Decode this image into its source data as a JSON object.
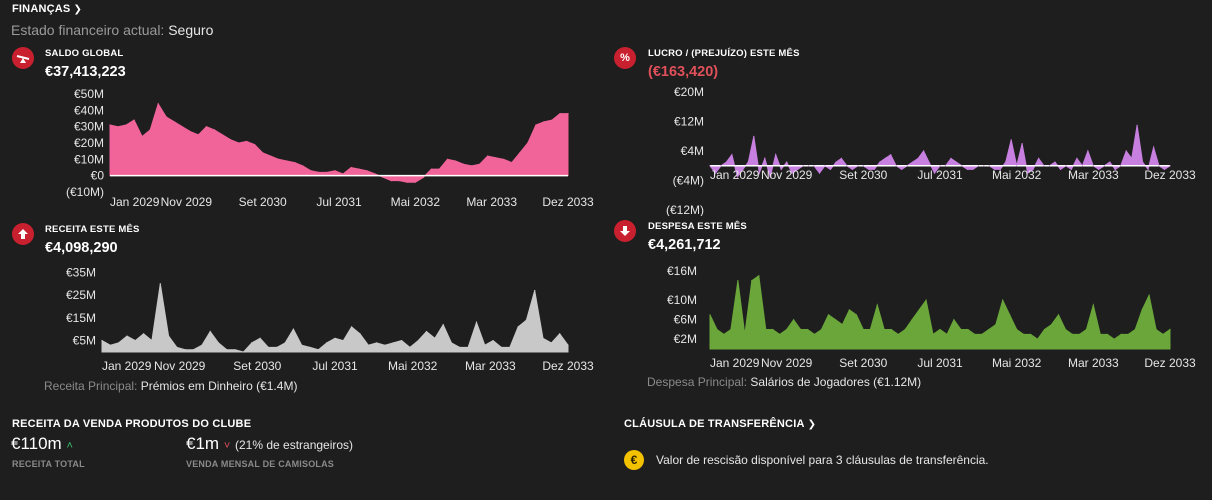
{
  "header": {
    "title": "FINANÇAS",
    "status_label": "Estado financeiro actual:",
    "status_value": "Seguro"
  },
  "colors": {
    "balance": "#f0649a",
    "profit": "#c77fe0",
    "income": "#c8c8c8",
    "expense": "#6aa63a",
    "accent": "#c8202f",
    "negative": "#e0505a",
    "up": "#33c26a",
    "down": "#e0505a",
    "coin": "#f2c200"
  },
  "panels": {
    "balance": {
      "label": "SALDO GLOBAL",
      "value": "€37,413,223",
      "icon": "seesaw-icon"
    },
    "profit": {
      "label": "LUCRO / (PREJUÍZO) ESTE MÊS",
      "value": "(€163,420)",
      "icon": "percent-icon"
    },
    "income": {
      "label": "RECEITA ESTE MÊS",
      "value": "€4,098,290",
      "icon": "arrow-up-icon",
      "footer_label": "Receita Principal:",
      "footer_value": "Prémios em Dinheiro (€1.4M)"
    },
    "expense": {
      "label": "DESPESA ESTE MÊS",
      "value": "€4,261,712",
      "icon": "arrow-down-icon",
      "footer_label": "Despesa Principal:",
      "footer_value": "Salários de Jogadores (€1.12M)"
    }
  },
  "merch": {
    "title": "RECEITA DA VENDA PRODUTOS DO CLUBE",
    "total_value": "€110m",
    "total_label": "RECEITA TOTAL",
    "monthly_value": "€1m",
    "monthly_note": "(21% de estrangeiros)",
    "monthly_label": "VENDA MENSAL DE CAMISOLAS"
  },
  "transfer": {
    "title": "CLÁUSULA DE TRANSFERÊNCIA",
    "coin_symbol": "€",
    "text": "Valor de rescisão disponível para 3 cláusulas de transferência."
  },
  "chart_data": [
    {
      "id": "balance",
      "type": "area",
      "x_ticks": [
        "Jan 2029",
        "Nov 2029",
        "Set 2030",
        "Jul 2031",
        "Mai 2032",
        "Mar 2033",
        "Dez 2033"
      ],
      "y_ticks": [
        "€50M",
        "€40M",
        "€30M",
        "€20M",
        "€10M",
        "€0",
        "(€10M)"
      ],
      "y_tick_values": [
        50,
        40,
        30,
        20,
        10,
        0,
        -10
      ],
      "ylim": [
        -10,
        50
      ],
      "values": [
        31,
        30,
        31,
        34,
        24,
        28,
        44,
        36,
        33,
        30,
        27,
        25,
        30,
        28,
        25,
        22,
        20,
        21,
        19,
        14,
        12,
        10,
        9,
        8,
        6,
        3,
        2,
        2,
        3,
        1,
        5,
        4,
        3,
        1,
        -1,
        -3,
        -3,
        -4,
        -4,
        -1,
        4,
        4,
        10,
        9,
        7,
        6,
        7,
        12,
        11,
        10,
        8,
        14,
        20,
        31,
        33,
        34,
        38,
        38
      ]
    },
    {
      "id": "profit",
      "type": "area",
      "x_ticks": [
        "Jan 2029",
        "Nov 2029",
        "Set 2030",
        "Jul 2031",
        "Mai 2032",
        "Mar 2033",
        "Dez 2033"
      ],
      "y_ticks": [
        "€20M",
        "€12M",
        "€4M",
        "(€4M)",
        "(€12M)"
      ],
      "y_tick_values": [
        20,
        12,
        4,
        -4,
        -12
      ],
      "ylim": [
        -12,
        20
      ],
      "values": [
        0,
        -2,
        0,
        1,
        3,
        -3,
        -1,
        1,
        8,
        -2,
        2,
        -3,
        3,
        -1,
        1,
        -2,
        -1,
        0,
        0,
        0,
        -2,
        0,
        -1,
        1,
        2,
        0,
        -1,
        0,
        0,
        -1,
        -1,
        1,
        2,
        3,
        0,
        -1,
        0,
        1,
        2,
        4,
        1,
        -2,
        0,
        0,
        2,
        1,
        0,
        -1,
        -1,
        0,
        0,
        0,
        -1,
        -1,
        1,
        7,
        0,
        6,
        -2,
        -1,
        2,
        0,
        0,
        1,
        -1,
        0,
        -1,
        2,
        0,
        4,
        0,
        -1,
        0,
        1,
        -1,
        0,
        4,
        2,
        11,
        1,
        -1,
        5,
        0,
        -1,
        0
      ]
    },
    {
      "id": "income",
      "type": "area",
      "x_ticks": [
        "Jan 2029",
        "Nov 2029",
        "Set 2030",
        "Jul 2031",
        "Mai 2032",
        "Mar 2033",
        "Dez 2033"
      ],
      "y_ticks": [
        "€35M",
        "€25M",
        "€15M",
        "€5M"
      ],
      "y_tick_values": [
        35,
        25,
        15,
        5
      ],
      "ylim": [
        0,
        36
      ],
      "values": [
        5,
        3,
        4,
        7,
        5,
        8,
        5,
        30,
        7,
        2,
        1,
        1,
        3,
        9,
        4,
        1,
        1,
        0,
        4,
        6,
        2,
        2,
        4,
        10,
        3,
        2,
        1,
        4,
        6,
        5,
        11,
        8,
        3,
        4,
        3,
        4,
        5,
        2,
        5,
        9,
        6,
        12,
        4,
        2,
        2,
        13,
        3,
        5,
        2,
        2,
        11,
        14,
        27,
        6,
        4,
        8,
        3
      ]
    },
    {
      "id": "expense",
      "type": "area",
      "x_ticks": [
        "Jan 2029",
        "Nov 2029",
        "Set 2030",
        "Jul 2031",
        "Mai 2032",
        "Mar 2033",
        "Dez 2033"
      ],
      "y_ticks": [
        "€16M",
        "€10M",
        "€6M",
        "€2M"
      ],
      "y_tick_values": [
        16,
        10,
        6,
        2
      ],
      "ylim": [
        0,
        17
      ],
      "values": [
        7,
        4,
        3,
        4,
        14,
        3,
        14,
        15,
        4,
        4,
        3,
        4,
        6,
        4,
        4,
        3,
        4,
        7,
        6,
        5,
        8,
        7,
        4,
        4,
        9,
        4,
        4,
        3,
        4,
        6,
        8,
        10,
        3,
        4,
        3,
        6,
        4,
        4,
        3,
        3,
        4,
        5,
        10,
        7,
        4,
        3,
        3,
        2,
        4,
        5,
        7,
        4,
        3,
        3,
        4,
        9,
        3,
        3,
        2,
        3,
        3,
        4,
        8,
        11,
        4,
        3,
        4
      ]
    }
  ]
}
